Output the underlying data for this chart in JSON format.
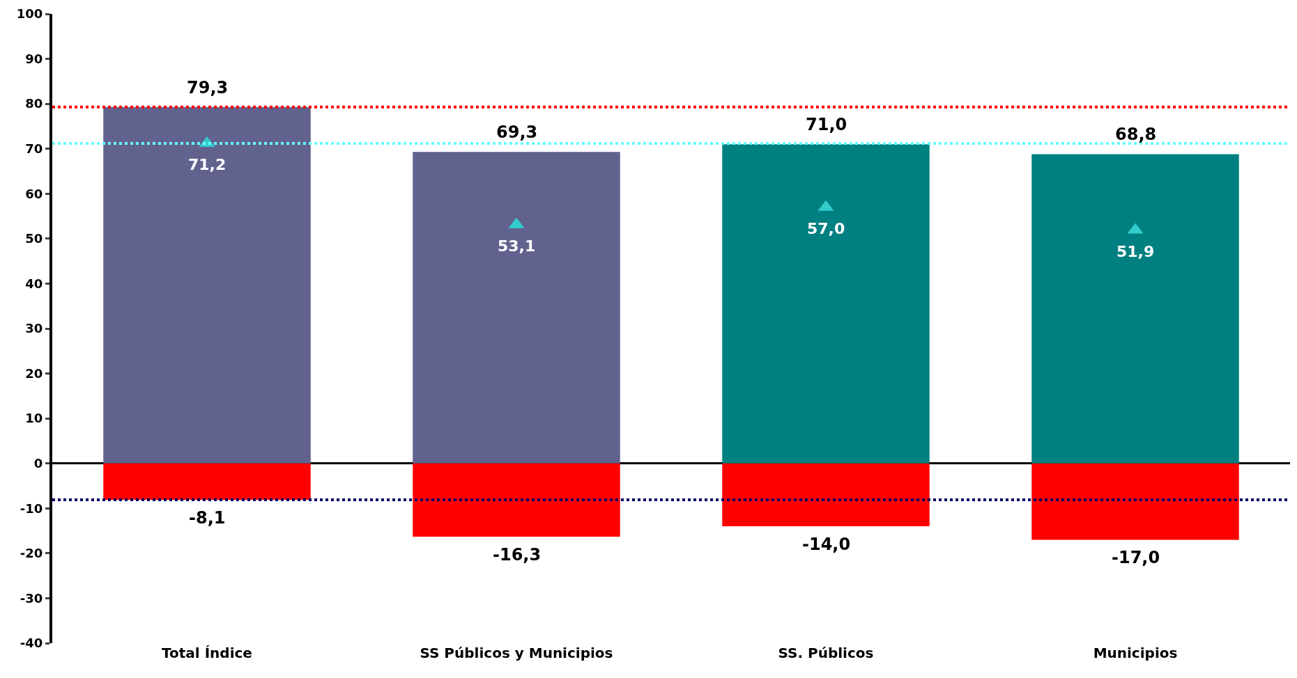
{
  "chart_data": {
    "type": "bar",
    "stacked": true,
    "categories": [
      "Total Índice",
      "SS Públicos y Municipios",
      "SS. Públicos",
      "Municipios"
    ],
    "series": [
      {
        "colors": [
          "#62628f",
          "#62628f",
          "#008080",
          "#008080"
        ],
        "values": [
          79.3,
          69.3,
          71.0,
          68.8
        ],
        "value_labels": [
          "79,3",
          "69,3",
          "71,0",
          "68,8"
        ]
      },
      {
        "color": "#ff0000",
        "values": [
          -8.1,
          -16.3,
          -14.0,
          -17.0
        ],
        "value_labels": [
          "-8,1",
          "-16,3",
          "-14,0",
          "-17,0"
        ]
      },
      {
        "type": "scatter",
        "color": "#33cccc",
        "marker": "triangle",
        "values": [
          71.2,
          53.1,
          57.0,
          51.9
        ],
        "value_labels": [
          "71,2",
          "53,1",
          "57,0",
          "51,9"
        ]
      }
    ],
    "ylim": [
      -40,
      100
    ],
    "yticks": [
      -40,
      -30,
      -20,
      -10,
      0,
      10,
      20,
      30,
      40,
      50,
      60,
      70,
      80,
      90,
      100
    ],
    "ref_lines": [
      {
        "axis": "y",
        "value": 79.3,
        "color": "#ff0000",
        "line_style": "dotted"
      },
      {
        "axis": "y",
        "value": 71.2,
        "color": "#66ffff",
        "line_style": "dotted"
      },
      {
        "axis": "y",
        "value": -8.1,
        "color": "#000066",
        "line_style": "dotted"
      }
    ]
  }
}
